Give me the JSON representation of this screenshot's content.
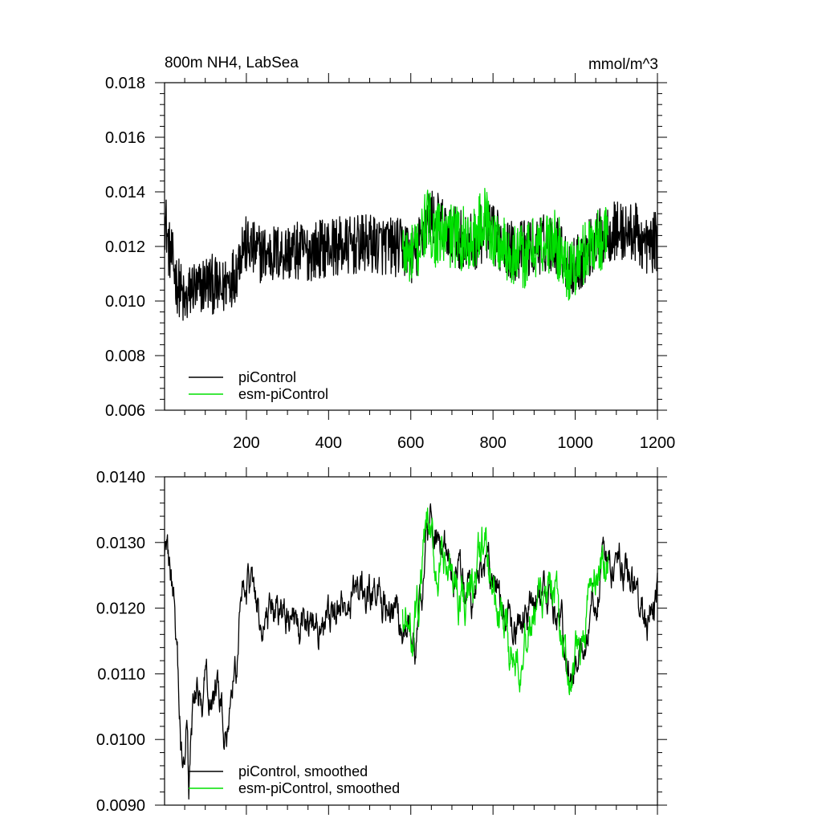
{
  "colors": {
    "piControl": "#000000",
    "esm_piControl": "#00e000",
    "axis": "#000000",
    "background": "#ffffff"
  },
  "chart_data": [
    {
      "type": "line",
      "title": "800m NH4, LabSea",
      "units": "mmol/m^3",
      "xlim": [
        1,
        1200
      ],
      "ylim": [
        0.006,
        0.018
      ],
      "xticks": [
        200,
        400,
        600,
        800,
        1000,
        1200
      ],
      "xtick_labels": [
        "200",
        "400",
        "600",
        "800",
        "1000",
        "1200"
      ],
      "yticks": [
        0.006,
        0.008,
        0.01,
        0.012,
        0.014,
        0.016,
        0.018
      ],
      "ytick_labels": [
        "0.006",
        "0.008",
        "0.010",
        "0.012",
        "0.014",
        "0.016",
        "0.018"
      ],
      "legend_position": "bottom-left",
      "grid": false,
      "series": [
        {
          "name": "piControl",
          "color": "#000000",
          "x_start": 1,
          "x_end": 1200,
          "anchor_x": [
            1,
            5,
            10,
            20,
            30,
            40,
            50,
            60,
            70,
            80,
            90,
            100,
            120,
            140,
            150,
            160,
            175,
            190,
            200,
            220,
            250,
            300,
            350,
            400,
            450,
            500,
            550,
            590,
            610,
            640,
            650,
            700,
            750,
            780,
            800,
            850,
            900,
            950,
            990,
            1000,
            1050,
            1080,
            1100,
            1120,
            1150,
            1170,
            1200
          ],
          "anchor_y": [
            0.013,
            0.0128,
            0.012,
            0.0115,
            0.0107,
            0.0104,
            0.0098,
            0.0102,
            0.0106,
            0.0103,
            0.0105,
            0.0107,
            0.0106,
            0.0103,
            0.0107,
            0.0108,
            0.0111,
            0.0121,
            0.012,
            0.0118,
            0.0117,
            0.0118,
            0.0118,
            0.012,
            0.012,
            0.0121,
            0.012,
            0.0119,
            0.0116,
            0.013,
            0.0131,
            0.0124,
            0.0121,
            0.0126,
            0.0124,
            0.0118,
            0.012,
            0.0122,
            0.0112,
            0.0113,
            0.0122,
            0.0125,
            0.0126,
            0.0125,
            0.0125,
            0.012,
            0.0122
          ],
          "noise_amplitude": 0.0011,
          "seed": 12345
        },
        {
          "name": "esm-piControl",
          "color": "#00e000",
          "x_start": 580,
          "x_end": 1080,
          "anchor_x": [
            580,
            600,
            620,
            640,
            660,
            700,
            750,
            780,
            800,
            840,
            880,
            900,
            950,
            990,
            1000,
            1040,
            1080
          ],
          "anchor_y": [
            0.0118,
            0.0116,
            0.012,
            0.013,
            0.0124,
            0.0124,
            0.0122,
            0.0131,
            0.0123,
            0.0118,
            0.0116,
            0.012,
            0.0122,
            0.011,
            0.0112,
            0.0122,
            0.0124
          ],
          "noise_amplitude": 0.0012,
          "seed": 777
        }
      ]
    },
    {
      "type": "line",
      "title": "",
      "xlim": [
        1,
        1200
      ],
      "ylim": [
        0.009,
        0.014
      ],
      "xticks": [
        200,
        400,
        600,
        800,
        1000,
        1200
      ],
      "xtick_labels": [],
      "yticks": [
        0.009,
        0.01,
        0.011,
        0.012,
        0.013,
        0.014
      ],
      "ytick_labels": [
        "0.0090",
        "0.0100",
        "0.0110",
        "0.0120",
        "0.0130",
        "0.0140"
      ],
      "legend_position": "bottom-left",
      "grid": false,
      "series": [
        {
          "name": "piControl, smoothed",
          "color": "#000000",
          "x_start": 1,
          "x_end": 1200,
          "anchor_x": [
            1,
            5,
            10,
            20,
            30,
            40,
            45,
            55,
            60,
            65,
            70,
            80,
            90,
            100,
            120,
            140,
            150,
            160,
            175,
            190,
            200,
            220,
            250,
            300,
            350,
            400,
            450,
            500,
            550,
            590,
            610,
            640,
            650,
            700,
            750,
            780,
            800,
            850,
            900,
            950,
            990,
            1000,
            1050,
            1080,
            1100,
            1120,
            1150,
            1170,
            1200
          ],
          "anchor_y": [
            0.013,
            0.0129,
            0.0126,
            0.0123,
            0.0116,
            0.01,
            0.0097,
            0.0103,
            0.0092,
            0.01,
            0.0104,
            0.0107,
            0.0106,
            0.0108,
            0.0107,
            0.0106,
            0.0098,
            0.0107,
            0.0111,
            0.0124,
            0.0123,
            0.012,
            0.0118,
            0.0118,
            0.0118,
            0.012,
            0.0121,
            0.0122,
            0.012,
            0.0118,
            0.0113,
            0.0131,
            0.0133,
            0.0125,
            0.0122,
            0.0129,
            0.0124,
            0.0116,
            0.0121,
            0.0122,
            0.0108,
            0.0112,
            0.0123,
            0.0126,
            0.0127,
            0.0126,
            0.0124,
            0.0117,
            0.0124
          ],
          "noise_amplitude": 0.00035,
          "seed": 2024
        },
        {
          "name": "esm-piControl, smoothed",
          "color": "#00e000",
          "x_start": 580,
          "x_end": 1080,
          "anchor_x": [
            580,
            600,
            620,
            640,
            660,
            700,
            750,
            780,
            800,
            840,
            880,
            900,
            950,
            990,
            1000,
            1040,
            1080
          ],
          "anchor_y": [
            0.0118,
            0.0115,
            0.0121,
            0.0132,
            0.0126,
            0.0124,
            0.0121,
            0.0131,
            0.0122,
            0.0113,
            0.0116,
            0.0119,
            0.0121,
            0.0106,
            0.011,
            0.0123,
            0.0128
          ],
          "noise_amplitude": 0.0004,
          "seed": 4242
        }
      ]
    }
  ]
}
